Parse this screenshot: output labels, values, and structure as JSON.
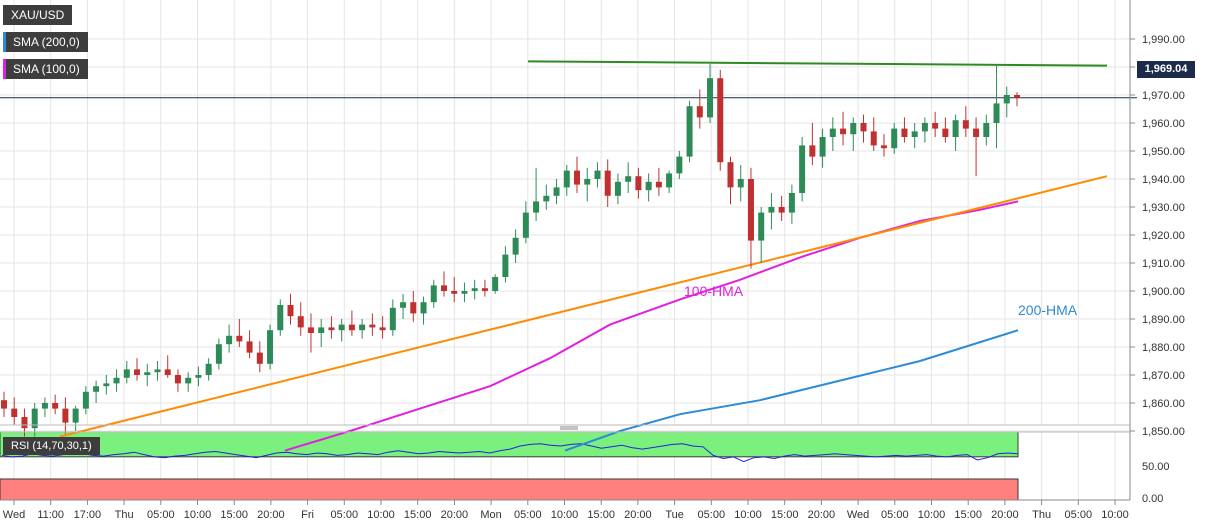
{
  "chart_data": {
    "type": "candlestick",
    "symbol": "XAU/USD",
    "last_price": "1,969.04",
    "indicators_legend": [
      {
        "label": "SMA (200,0)",
        "color": "#2d8bd6"
      },
      {
        "label": "SMA (100,0)",
        "color": "#e020e0"
      }
    ],
    "ylim": [
      1843,
      1993
    ],
    "y_ticks": [
      "1,850.00",
      "1,860.00",
      "1,870.00",
      "1,880.00",
      "1,890.00",
      "1,900.00",
      "1,910.00",
      "1,920.00",
      "1,930.00",
      "1,940.00",
      "1,950.00",
      "1,960.00",
      "1,970.00",
      "1,980.00",
      "1,990.00"
    ],
    "x_ticks": [
      "Wed",
      "11:00",
      "17:00",
      "Thu",
      "05:00",
      "10:00",
      "15:00",
      "20:00",
      "Fri",
      "05:00",
      "10:00",
      "15:00",
      "20:00",
      "Mon",
      "05:00",
      "10:00",
      "15:00",
      "20:00",
      "Tue",
      "05:00",
      "10:00",
      "15:00",
      "20:00",
      "Wed",
      "05:00",
      "10:00",
      "15:00",
      "20:00",
      "Thu",
      "05:00",
      "10:00"
    ],
    "candles": [
      [
        1861,
        1864,
        1855,
        1858
      ],
      [
        1858,
        1862,
        1852,
        1855
      ],
      [
        1855,
        1858,
        1848,
        1851
      ],
      [
        1851,
        1860,
        1848,
        1858
      ],
      [
        1858,
        1862,
        1855,
        1860
      ],
      [
        1860,
        1863,
        1856,
        1858
      ],
      [
        1858,
        1862,
        1849,
        1853
      ],
      [
        1853,
        1859,
        1850,
        1858
      ],
      [
        1858,
        1866,
        1856,
        1864
      ],
      [
        1864,
        1868,
        1860,
        1866
      ],
      [
        1866,
        1870,
        1863,
        1867
      ],
      [
        1867,
        1872,
        1864,
        1869
      ],
      [
        1869,
        1875,
        1867,
        1872
      ],
      [
        1872,
        1876,
        1868,
        1870
      ],
      [
        1870,
        1874,
        1866,
        1871
      ],
      [
        1871,
        1875,
        1868,
        1872
      ],
      [
        1872,
        1877,
        1869,
        1870
      ],
      [
        1870,
        1872,
        1864,
        1867
      ],
      [
        1867,
        1871,
        1864,
        1869
      ],
      [
        1869,
        1873,
        1866,
        1870
      ],
      [
        1870,
        1876,
        1868,
        1874
      ],
      [
        1874,
        1883,
        1872,
        1881
      ],
      [
        1881,
        1888,
        1878,
        1884
      ],
      [
        1884,
        1890,
        1880,
        1882
      ],
      [
        1882,
        1886,
        1876,
        1878
      ],
      [
        1878,
        1882,
        1871,
        1874
      ],
      [
        1874,
        1888,
        1872,
        1886
      ],
      [
        1886,
        1897,
        1884,
        1895
      ],
      [
        1895,
        1899,
        1888,
        1891
      ],
      [
        1891,
        1896,
        1884,
        1887
      ],
      [
        1887,
        1892,
        1878,
        1885
      ],
      [
        1885,
        1890,
        1880,
        1887
      ],
      [
        1887,
        1891,
        1883,
        1886
      ],
      [
        1886,
        1890,
        1882,
        1888
      ],
      [
        1888,
        1893,
        1884,
        1886
      ],
      [
        1886,
        1890,
        1883,
        1888
      ],
      [
        1888,
        1892,
        1884,
        1887
      ],
      [
        1887,
        1891,
        1883,
        1886
      ],
      [
        1886,
        1897,
        1884,
        1894
      ],
      [
        1894,
        1899,
        1890,
        1896
      ],
      [
        1896,
        1900,
        1889,
        1892
      ],
      [
        1892,
        1898,
        1888,
        1896
      ],
      [
        1896,
        1904,
        1894,
        1902
      ],
      [
        1902,
        1907,
        1898,
        1900
      ],
      [
        1900,
        1905,
        1896,
        1899
      ],
      [
        1899,
        1903,
        1896,
        1900
      ],
      [
        1900,
        1904,
        1897,
        1901
      ],
      [
        1901,
        1904,
        1898,
        1900
      ],
      [
        1900,
        1906,
        1899,
        1905
      ],
      [
        1905,
        1916,
        1903,
        1913
      ],
      [
        1913,
        1922,
        1910,
        1919
      ],
      [
        1919,
        1932,
        1917,
        1928
      ],
      [
        1928,
        1944,
        1925,
        1932
      ],
      [
        1932,
        1938,
        1929,
        1934
      ],
      [
        1934,
        1940,
        1931,
        1937
      ],
      [
        1937,
        1945,
        1934,
        1943
      ],
      [
        1943,
        1948,
        1935,
        1938
      ],
      [
        1938,
        1944,
        1932,
        1940
      ],
      [
        1940,
        1946,
        1937,
        1943
      ],
      [
        1943,
        1947,
        1930,
        1934
      ],
      [
        1934,
        1942,
        1931,
        1939
      ],
      [
        1939,
        1946,
        1935,
        1941
      ],
      [
        1941,
        1944,
        1933,
        1936
      ],
      [
        1936,
        1942,
        1932,
        1939
      ],
      [
        1939,
        1944,
        1934,
        1937
      ],
      [
        1937,
        1943,
        1935,
        1942
      ],
      [
        1942,
        1950,
        1940,
        1948
      ],
      [
        1948,
        1968,
        1946,
        1966
      ],
      [
        1966,
        1972,
        1958,
        1962
      ],
      [
        1962,
        1981,
        1960,
        1976
      ],
      [
        1976,
        1979,
        1943,
        1946
      ],
      [
        1946,
        1948,
        1931,
        1937
      ],
      [
        1937,
        1945,
        1932,
        1940
      ],
      [
        1940,
        1944,
        1908,
        1918
      ],
      [
        1918,
        1930,
        1910,
        1928
      ],
      [
        1928,
        1935,
        1922,
        1930
      ],
      [
        1930,
        1934,
        1925,
        1928
      ],
      [
        1928,
        1938,
        1924,
        1935
      ],
      [
        1935,
        1955,
        1932,
        1952
      ],
      [
        1952,
        1960,
        1945,
        1948
      ],
      [
        1948,
        1958,
        1944,
        1955
      ],
      [
        1955,
        1962,
        1950,
        1958
      ],
      [
        1958,
        1964,
        1952,
        1956
      ],
      [
        1956,
        1962,
        1950,
        1960
      ],
      [
        1960,
        1963,
        1953,
        1957
      ],
      [
        1957,
        1962,
        1950,
        1952
      ],
      [
        1952,
        1956,
        1948,
        1951
      ],
      [
        1951,
        1960,
        1949,
        1958
      ],
      [
        1958,
        1962,
        1953,
        1955
      ],
      [
        1955,
        1960,
        1951,
        1957
      ],
      [
        1957,
        1962,
        1953,
        1960
      ],
      [
        1960,
        1964,
        1955,
        1958
      ],
      [
        1958,
        1962,
        1953,
        1955
      ],
      [
        1955,
        1963,
        1950,
        1961
      ],
      [
        1961,
        1966,
        1955,
        1958
      ],
      [
        1958,
        1962,
        1941,
        1955
      ],
      [
        1955,
        1963,
        1952,
        1960
      ],
      [
        1960,
        1981,
        1951,
        1967
      ],
      [
        1967,
        1973,
        1962,
        1970
      ],
      [
        1970,
        1971,
        1966,
        1969
      ]
    ],
    "annotations": [
      {
        "text": "100-HMA",
        "color": "#e020e0"
      },
      {
        "text": "200-HMA",
        "color": "#2d8bd6"
      }
    ],
    "hma100": [
      [
        285,
        1843
      ],
      [
        350,
        1850
      ],
      [
        420,
        1858
      ],
      [
        490,
        1866
      ],
      [
        550,
        1876
      ],
      [
        610,
        1888
      ],
      [
        680,
        1897
      ],
      [
        740,
        1904
      ],
      [
        800,
        1912
      ],
      [
        860,
        1919
      ],
      [
        920,
        1925
      ],
      [
        980,
        1929
      ],
      [
        1018,
        1932
      ]
    ],
    "hma200": [
      [
        565,
        1843
      ],
      [
        620,
        1850
      ],
      [
        680,
        1856
      ],
      [
        760,
        1861
      ],
      [
        840,
        1868
      ],
      [
        920,
        1875
      ],
      [
        1018,
        1886
      ]
    ],
    "support_line": [
      [
        60,
        1848
      ],
      [
        1107,
        1941
      ]
    ],
    "resistance_line": [
      [
        528,
        1982
      ],
      [
        1107,
        1980.5
      ]
    ],
    "rsi": {
      "label": "RSI (14,70,30,1)",
      "levels": [
        70,
        30
      ],
      "y_ticks": [
        "50.00",
        "0.00"
      ],
      "values": [
        58,
        56,
        57,
        60,
        58,
        57,
        59,
        61,
        60,
        58,
        57,
        59,
        60,
        62,
        59,
        56,
        55,
        57,
        58,
        60,
        62,
        63,
        61,
        59,
        57,
        55,
        58,
        61,
        62,
        60,
        59,
        61,
        60,
        58,
        59,
        61,
        60,
        59,
        62,
        64,
        62,
        60,
        61,
        63,
        62,
        61,
        62,
        63,
        61,
        64,
        66,
        70,
        72,
        73,
        71,
        70,
        72,
        73,
        70,
        67,
        69,
        71,
        68,
        66,
        68,
        70,
        72,
        73,
        70,
        69,
        58,
        54,
        56,
        50,
        55,
        56,
        54,
        57,
        59,
        57,
        58,
        59,
        60,
        59,
        58,
        57,
        56,
        57,
        58,
        57,
        58,
        59,
        57,
        56,
        58,
        59,
        52,
        55,
        60,
        61,
        60
      ]
    }
  }
}
